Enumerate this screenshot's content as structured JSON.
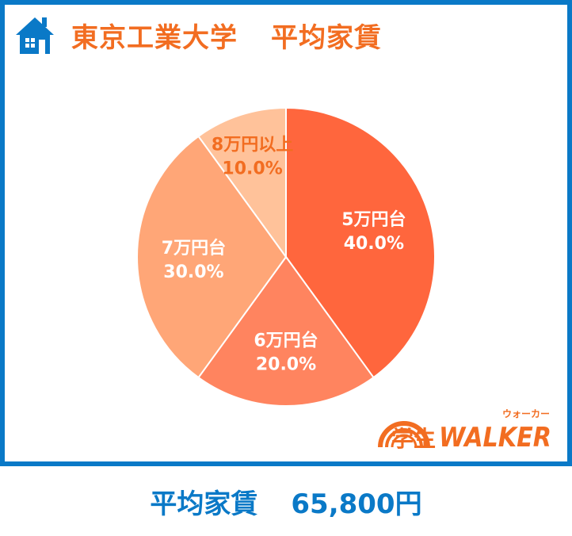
{
  "header": {
    "icon": "house-icon",
    "university": "東京工業大学",
    "subject": "平均家賃"
  },
  "chart_data": {
    "type": "pie",
    "categories": [
      "5万円台",
      "6万円台",
      "7万円台",
      "8万円以上"
    ],
    "values": [
      40.0,
      20.0,
      30.0,
      10.0
    ],
    "labels": [
      "40.0%",
      "20.0%",
      "30.0%",
      "10.0%"
    ],
    "colors": [
      "#ff663d",
      "#ff845f",
      "#ffa677",
      "#ffc29a"
    ],
    "label_color_inside": "#ffffff",
    "label_color_outside": "#f26d21",
    "title": "",
    "start": "top",
    "direction": "clockwise"
  },
  "logo": {
    "text_gakusei": "学生",
    "text_walker": "WALKER",
    "text_ruby": "ウォーカー",
    "icon": "rainbow-arc-icon"
  },
  "footer": {
    "label": "平均家賃",
    "value": "65,800円"
  },
  "colors": {
    "frame": "#0a79c7",
    "accent": "#f26d21"
  }
}
